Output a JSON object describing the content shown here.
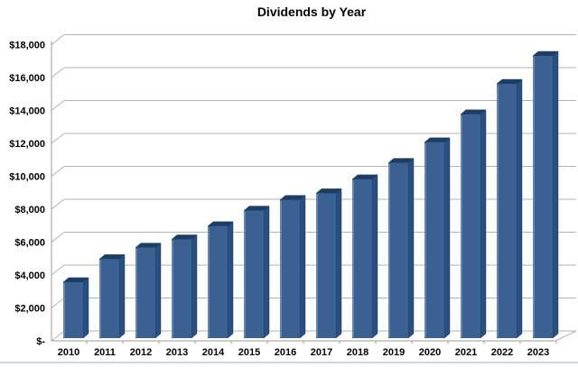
{
  "page": {
    "background": "#ffffff",
    "divider_color": "#c9d6e4"
  },
  "chart_data": {
    "type": "bar",
    "style": "3d-column",
    "title": "Dividends by Year",
    "xlabel": "",
    "ylabel": "",
    "categories": [
      "2010",
      "2011",
      "2012",
      "2013",
      "2014",
      "2015",
      "2016",
      "2017",
      "2018",
      "2019",
      "2020",
      "2021",
      "2022",
      "2023"
    ],
    "values": [
      3400,
      4800,
      5500,
      6000,
      6800,
      7750,
      8400,
      8800,
      9650,
      10650,
      11900,
      13600,
      15450,
      17150
    ],
    "ylim": [
      0,
      18000
    ],
    "y_tick_step": 2000,
    "y_tick_values": [
      0,
      2000,
      4000,
      6000,
      8000,
      10000,
      12000,
      14000,
      16000,
      18000
    ],
    "y_tick_labels": [
      "$-",
      "$2,000",
      "$4,000",
      "$6,000",
      "$8,000",
      "$10,000",
      "$12,000",
      "$14,000",
      "$16,000",
      "$18,000"
    ],
    "grid": true,
    "legend": false,
    "colors": {
      "bar_front": "#3a6191",
      "bar_side": "#2a4e7e",
      "bar_top": "#1d3d64",
      "bar_highlight": "#6f93ba",
      "gridline": "#b3b3b3",
      "axis": "#9b9b9b",
      "text": "#000000"
    }
  }
}
